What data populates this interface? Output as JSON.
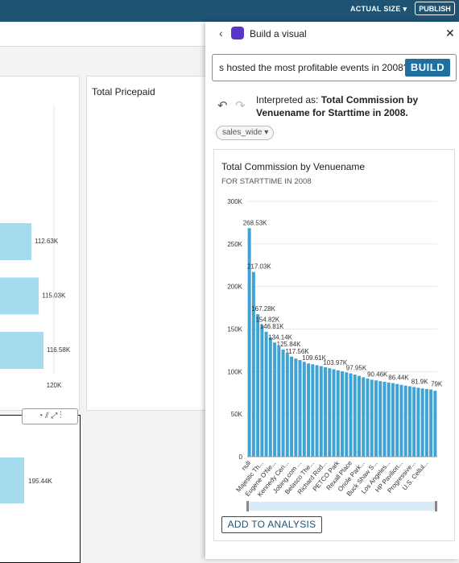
{
  "toolbar": {
    "actual_size": "ACTUAL SIZE",
    "publish": "PUBLISH"
  },
  "background": {
    "panel_title": "Total Pricepaid",
    "left_chart": {
      "values": [
        112630,
        115030,
        116580
      ],
      "value_labels": [
        "112.63K",
        "115.03K",
        "116.58K"
      ],
      "xticks": [
        {
          "value": 120000,
          "label": "120K"
        }
      ]
    },
    "bottom_chart": {
      "values": [
        195440
      ],
      "value_labels": [
        "195.44K"
      ]
    }
  },
  "panel": {
    "title": "Build a visual",
    "query": "s hosted the most profitable events in 2008?",
    "build": "BUILD",
    "interpreted_prefix": "Interpreted as:",
    "interpreted": "Total Commission by Venuename for Starttime in 2008.",
    "dataset": "sales_wide",
    "add_button": "ADD TO ANALYSIS"
  },
  "chart_data": {
    "type": "bar",
    "title": "Total Commission by Venuename",
    "subtitle": "FOR STARTTIME IN 2008",
    "color": "#3fa3d4",
    "grid": true,
    "categories": [
      "null",
      null,
      null,
      "Majestic Th...",
      null,
      null,
      "Eugene O'Ne...",
      null,
      null,
      "Kennedy Cen...",
      null,
      null,
      "Jobing.com ...",
      null,
      null,
      "Belasco The...",
      null,
      null,
      "Richard Rod...",
      null,
      null,
      "PETCO Park",
      null,
      null,
      "Rexall Place",
      null,
      null,
      "Oriole Park...",
      null,
      null,
      "Buck Shaw S...",
      null,
      null,
      "Los Angeles...",
      null,
      null,
      "HP Pavilion...",
      null,
      null,
      "Progressive...",
      null,
      null,
      "U.S. Cellul...",
      null,
      null
    ],
    "values": [
      268530,
      217030,
      167280,
      154820,
      146810,
      140200,
      134140,
      129500,
      125840,
      121000,
      117560,
      115300,
      113500,
      111400,
      109610,
      108600,
      107500,
      106400,
      105100,
      103970,
      102700,
      101400,
      100300,
      99100,
      97950,
      96500,
      95000,
      93300,
      91800,
      90460,
      89600,
      88800,
      88000,
      87200,
      86440,
      85400,
      84400,
      83500,
      82700,
      81900,
      81000,
      80200,
      79500,
      79000,
      77500
    ],
    "value_labels": [
      "268.53K",
      "217.03K",
      "167.28K",
      "154.82K",
      "146.81K",
      null,
      "134.14K",
      null,
      "125.84K",
      null,
      "117.56K",
      null,
      null,
      null,
      "109.61K",
      null,
      null,
      null,
      null,
      "103.97K",
      null,
      null,
      null,
      null,
      "97.95K",
      null,
      null,
      null,
      null,
      "90.46K",
      null,
      null,
      null,
      null,
      "86.44K",
      null,
      null,
      null,
      null,
      "81.9K",
      null,
      null,
      null,
      "79K",
      null
    ],
    "ylim": [
      0,
      300000
    ],
    "yticks": [
      0,
      {
        "value": 50000,
        "label": "50K"
      },
      {
        "value": 100000,
        "label": "100K"
      },
      {
        "value": 150000,
        "label": "150K"
      },
      {
        "value": 200000,
        "label": "200K"
      },
      {
        "value": 250000,
        "label": "250K"
      },
      {
        "value": 300000,
        "label": "300K"
      }
    ]
  }
}
